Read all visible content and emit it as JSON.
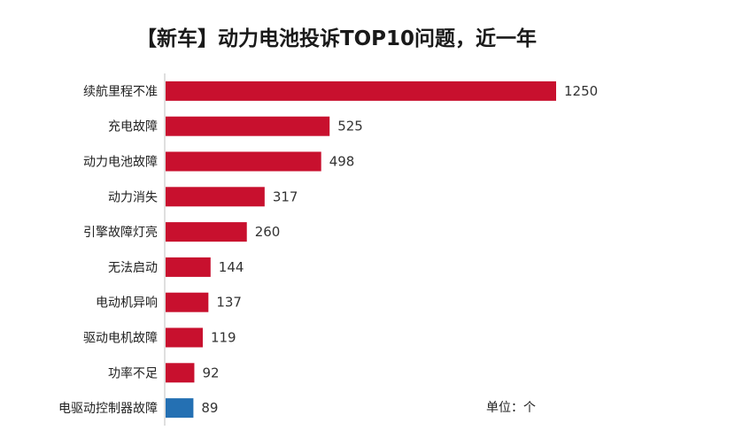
{
  "chart_data": {
    "type": "bar",
    "orientation": "horizontal",
    "title": "【新车】动力电池投诉TOP10问题，近一年",
    "unit_label": "单位：个",
    "categories": [
      "续航里程不准",
      "充电故障",
      "动力电池故障",
      "动力消失",
      "引擎故障灯亮",
      "无法启动",
      "电动机异响",
      "驱动电机故障",
      "功率不足",
      "电驱动控制器故障"
    ],
    "values": [
      1250,
      525,
      498,
      317,
      260,
      144,
      137,
      119,
      92,
      89
    ],
    "bar_colors": [
      "#c8102e",
      "#c8102e",
      "#c8102e",
      "#c8102e",
      "#c8102e",
      "#c8102e",
      "#c8102e",
      "#c8102e",
      "#c8102e",
      "#2470b3"
    ],
    "xlim": [
      0,
      1250
    ],
    "grid": false,
    "legend": "none",
    "axis_line_color": "#bfbfbf"
  }
}
